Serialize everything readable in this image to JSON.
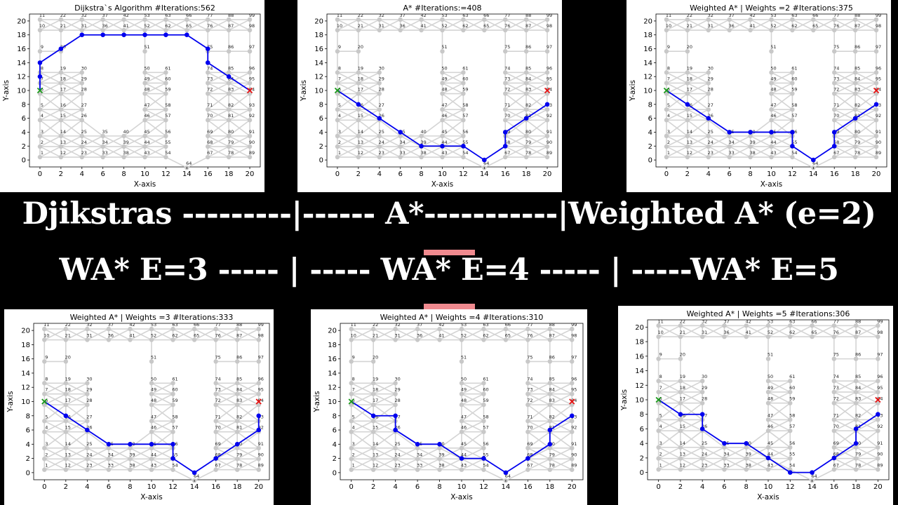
{
  "banner": {
    "line1": "Djikstras ---------|------ A*-----------|Weighted A* (e=2)",
    "line2": "WA* E=3 ----- | ----- WA* E=4 ----- | -----WA* E=5"
  },
  "colors": {
    "background": "#000000",
    "grid_node": "#c8c8c8",
    "grid_edge": "#d4d4d4",
    "path": "#0000ee",
    "start": "#1a9a1a",
    "goal": "#e81010",
    "accent_bar": "#f08a8f"
  },
  "graph": {
    "nodes": [
      {
        "id": "1",
        "x": 0,
        "y": 1
      },
      {
        "id": "2",
        "x": 0,
        "y": 2
      },
      {
        "id": "3",
        "x": 0,
        "y": 3
      },
      {
        "id": "4",
        "x": 0,
        "y": 4.5
      },
      {
        "id": "5",
        "x": 0,
        "y": 5.5
      },
      {
        "id": "6",
        "x": 0,
        "y": 7
      },
      {
        "id": "7",
        "x": 0,
        "y": 8
      },
      {
        "id": "8",
        "x": 0,
        "y": 9
      },
      {
        "id": "9",
        "x": 0,
        "y": 11
      },
      {
        "id": "10",
        "x": 0,
        "y": 13
      },
      {
        "id": "11",
        "x": 0,
        "y": 14
      },
      {
        "id": "12",
        "x": 2,
        "y": 1
      },
      {
        "id": "13",
        "x": 2,
        "y": 2
      },
      {
        "id": "14",
        "x": 2,
        "y": 3
      },
      {
        "id": "15",
        "x": 2,
        "y": 4.5
      },
      {
        "id": "16",
        "x": 2,
        "y": 5.5
      },
      {
        "id": "17",
        "x": 2,
        "y": 7
      },
      {
        "id": "18",
        "x": 2,
        "y": 8
      },
      {
        "id": "19",
        "x": 2,
        "y": 9
      },
      {
        "id": "20",
        "x": 2,
        "y": 11
      },
      {
        "id": "21",
        "x": 2,
        "y": 13
      },
      {
        "id": "22",
        "x": 2,
        "y": 14
      },
      {
        "id": "23",
        "x": 4,
        "y": 1
      },
      {
        "id": "24",
        "x": 4,
        "y": 2
      },
      {
        "id": "25",
        "x": 4,
        "y": 3
      },
      {
        "id": "26",
        "x": 4,
        "y": 4.5
      },
      {
        "id": "27",
        "x": 4,
        "y": 5.5
      },
      {
        "id": "28",
        "x": 4,
        "y": 7
      },
      {
        "id": "29",
        "x": 4,
        "y": 8
      },
      {
        "id": "30",
        "x": 4,
        "y": 9
      },
      {
        "id": "31",
        "x": 4,
        "y": 13
      },
      {
        "id": "32",
        "x": 4,
        "y": 14
      },
      {
        "id": "33",
        "x": 6,
        "y": 1
      },
      {
        "id": "34",
        "x": 6,
        "y": 2
      },
      {
        "id": "35",
        "x": 6,
        "y": 3
      },
      {
        "id": "36",
        "x": 6,
        "y": 13
      },
      {
        "id": "37",
        "x": 6,
        "y": 14
      },
      {
        "id": "38",
        "x": 8,
        "y": 1
      },
      {
        "id": "39",
        "x": 8,
        "y": 2
      },
      {
        "id": "40",
        "x": 8,
        "y": 3
      },
      {
        "id": "41",
        "x": 8,
        "y": 13
      },
      {
        "id": "42",
        "x": 8,
        "y": 14
      },
      {
        "id": "43",
        "x": 10,
        "y": 1
      },
      {
        "id": "44",
        "x": 10,
        "y": 2
      },
      {
        "id": "45",
        "x": 10,
        "y": 3
      },
      {
        "id": "46",
        "x": 10,
        "y": 4.5
      },
      {
        "id": "47",
        "x": 10,
        "y": 5.5
      },
      {
        "id": "48",
        "x": 10,
        "y": 7
      },
      {
        "id": "49",
        "x": 10,
        "y": 8
      },
      {
        "id": "50",
        "x": 10,
        "y": 9
      },
      {
        "id": "51",
        "x": 10,
        "y": 11
      },
      {
        "id": "52",
        "x": 10,
        "y": 13
      },
      {
        "id": "53",
        "x": 10,
        "y": 14
      },
      {
        "id": "54",
        "x": 12,
        "y": 1
      },
      {
        "id": "55",
        "x": 12,
        "y": 2
      },
      {
        "id": "56",
        "x": 12,
        "y": 3
      },
      {
        "id": "57",
        "x": 12,
        "y": 4.5
      },
      {
        "id": "58",
        "x": 12,
        "y": 5.5
      },
      {
        "id": "59",
        "x": 12,
        "y": 7
      },
      {
        "id": "60",
        "x": 12,
        "y": 8
      },
      {
        "id": "61",
        "x": 12,
        "y": 9
      },
      {
        "id": "62",
        "x": 12,
        "y": 13
      },
      {
        "id": "63",
        "x": 12,
        "y": 14
      },
      {
        "id": "64",
        "x": 14,
        "y": 0
      },
      {
        "id": "65",
        "x": 14,
        "y": 13
      },
      {
        "id": "66",
        "x": 14,
        "y": 14
      },
      {
        "id": "67",
        "x": 16,
        "y": 1
      },
      {
        "id": "68",
        "x": 16,
        "y": 2
      },
      {
        "id": "69",
        "x": 16,
        "y": 3
      },
      {
        "id": "70",
        "x": 16,
        "y": 4.5
      },
      {
        "id": "71",
        "x": 16,
        "y": 5.5
      },
      {
        "id": "72",
        "x": 16,
        "y": 7
      },
      {
        "id": "73",
        "x": 16,
        "y": 8
      },
      {
        "id": "74",
        "x": 16,
        "y": 9
      },
      {
        "id": "75",
        "x": 16,
        "y": 11
      },
      {
        "id": "76",
        "x": 16,
        "y": 13
      },
      {
        "id": "77",
        "x": 16,
        "y": 14
      },
      {
        "id": "78",
        "x": 18,
        "y": 1
      },
      {
        "id": "79",
        "x": 18,
        "y": 2
      },
      {
        "id": "80",
        "x": 18,
        "y": 3
      },
      {
        "id": "81",
        "x": 18,
        "y": 4.5
      },
      {
        "id": "82",
        "x": 18,
        "y": 5.5
      },
      {
        "id": "83",
        "x": 18,
        "y": 7
      },
      {
        "id": "84",
        "x": 18,
        "y": 8
      },
      {
        "id": "85",
        "x": 18,
        "y": 9
      },
      {
        "id": "86",
        "x": 18,
        "y": 11
      },
      {
        "id": "87",
        "x": 18,
        "y": 13
      },
      {
        "id": "88",
        "x": 18,
        "y": 14
      },
      {
        "id": "89",
        "x": 20,
        "y": 1
      },
      {
        "id": "90",
        "x": 20,
        "y": 2
      },
      {
        "id": "91",
        "x": 20,
        "y": 3
      },
      {
        "id": "92",
        "x": 20,
        "y": 4.5
      },
      {
        "id": "93",
        "x": 20,
        "y": 5.5
      },
      {
        "id": "94",
        "x": 20,
        "y": 7
      },
      {
        "id": "95",
        "x": 20,
        "y": 8
      },
      {
        "id": "96",
        "x": 20,
        "y": 9
      },
      {
        "id": "97",
        "x": 20,
        "y": 11
      },
      {
        "id": "98",
        "x": 20,
        "y": 13
      },
      {
        "id": "99",
        "x": 20,
        "y": 14
      }
    ]
  },
  "chart_data": [
    {
      "type": "scatter",
      "title": "Dijkstra`s Algorithm    #Iterations:562",
      "xlabel": "X-axis",
      "ylabel": "Y-axis",
      "xlim": [
        0,
        20
      ],
      "ylim": [
        0,
        20
      ],
      "xticks": [
        "0",
        "2",
        "4",
        "6",
        "8",
        "10",
        "12",
        "14",
        "16",
        "18",
        "20"
      ],
      "yticks": [
        "0",
        "2",
        "4",
        "6",
        "8",
        "10",
        "12",
        "14",
        "16",
        "18",
        "20"
      ],
      "start": [
        0,
        10
      ],
      "goal": [
        20,
        10
      ],
      "path": [
        [
          0,
          10
        ],
        [
          0,
          12
        ],
        [
          0,
          14
        ],
        [
          2,
          16
        ],
        [
          4,
          18
        ],
        [
          6,
          18
        ],
        [
          8,
          18
        ],
        [
          10,
          18
        ],
        [
          12,
          18
        ],
        [
          14,
          18
        ],
        [
          16,
          16
        ],
        [
          16,
          14
        ],
        [
          18,
          12
        ],
        [
          20,
          10
        ]
      ]
    },
    {
      "type": "scatter",
      "title": "A*  #Iterations:=408",
      "xlabel": "X-axis",
      "ylabel": "Y-axis",
      "xlim": [
        0,
        20
      ],
      "ylim": [
        0,
        20
      ],
      "xticks": [
        "0",
        "2",
        "4",
        "6",
        "8",
        "10",
        "12",
        "14",
        "16",
        "18",
        "20"
      ],
      "yticks": [
        "0",
        "2",
        "4",
        "6",
        "8",
        "10",
        "12",
        "14",
        "16",
        "18",
        "20"
      ],
      "start": [
        0,
        10
      ],
      "goal": [
        20,
        10
      ],
      "path": [
        [
          0,
          10
        ],
        [
          2,
          8
        ],
        [
          4,
          6
        ],
        [
          6,
          4
        ],
        [
          8,
          2
        ],
        [
          10,
          2
        ],
        [
          12,
          2
        ],
        [
          14,
          0
        ],
        [
          16,
          2
        ],
        [
          16,
          4
        ],
        [
          18,
          6
        ],
        [
          20,
          8
        ]
      ]
    },
    {
      "type": "scatter",
      "title": "Weighted A* | Weights =2  #Iterations:375",
      "xlabel": "X-axis",
      "ylabel": "Y-axis",
      "xlim": [
        0,
        20
      ],
      "ylim": [
        0,
        20
      ],
      "xticks": [
        "0",
        "2",
        "4",
        "6",
        "8",
        "10",
        "12",
        "14",
        "16",
        "18",
        "20"
      ],
      "yticks": [
        "0",
        "2",
        "4",
        "6",
        "8",
        "10",
        "12",
        "14",
        "16",
        "18",
        "20"
      ],
      "start": [
        0,
        10
      ],
      "goal": [
        20,
        10
      ],
      "path": [
        [
          0,
          10
        ],
        [
          2,
          8
        ],
        [
          4,
          6
        ],
        [
          6,
          4
        ],
        [
          8,
          4
        ],
        [
          10,
          4
        ],
        [
          12,
          4
        ],
        [
          12,
          2
        ],
        [
          14,
          0
        ],
        [
          16,
          2
        ],
        [
          16,
          4
        ],
        [
          18,
          6
        ],
        [
          20,
          8
        ]
      ]
    },
    {
      "type": "scatter",
      "title": "Weighted A* | Weights =3  #Iterations:333",
      "xlabel": "X-axis",
      "ylabel": "Y-axis",
      "xlim": [
        0,
        20
      ],
      "ylim": [
        0,
        20
      ],
      "xticks": [
        "0",
        "2",
        "4",
        "6",
        "8",
        "10",
        "12",
        "14",
        "16",
        "18",
        "20"
      ],
      "yticks": [
        "0",
        "2",
        "4",
        "6",
        "8",
        "10",
        "12",
        "14",
        "16",
        "18",
        "20"
      ],
      "start": [
        0,
        10
      ],
      "goal": [
        20,
        10
      ],
      "path": [
        [
          0,
          10
        ],
        [
          2,
          8
        ],
        [
          4,
          6
        ],
        [
          6,
          4
        ],
        [
          8,
          4
        ],
        [
          10,
          4
        ],
        [
          12,
          4
        ],
        [
          12,
          2
        ],
        [
          14,
          0
        ],
        [
          16,
          2
        ],
        [
          18,
          4
        ],
        [
          20,
          6
        ],
        [
          20,
          8
        ]
      ]
    },
    {
      "type": "scatter",
      "title": "Weighted A* | Weights =4  #Iterations:310",
      "xlabel": "X-axis",
      "ylabel": "Y-axis",
      "xlim": [
        0,
        20
      ],
      "ylim": [
        0,
        20
      ],
      "xticks": [
        "0",
        "2",
        "4",
        "6",
        "8",
        "10",
        "12",
        "14",
        "16",
        "18",
        "20"
      ],
      "yticks": [
        "0",
        "2",
        "4",
        "6",
        "8",
        "10",
        "12",
        "14",
        "16",
        "18",
        "20"
      ],
      "start": [
        0,
        10
      ],
      "goal": [
        20,
        10
      ],
      "path": [
        [
          0,
          10
        ],
        [
          2,
          8
        ],
        [
          4,
          8
        ],
        [
          4,
          6
        ],
        [
          6,
          4
        ],
        [
          8,
          4
        ],
        [
          10,
          2
        ],
        [
          12,
          2
        ],
        [
          14,
          0
        ],
        [
          16,
          2
        ],
        [
          18,
          4
        ],
        [
          18,
          6
        ],
        [
          20,
          8
        ]
      ]
    },
    {
      "type": "scatter",
      "title": "Weighted A* | Weights =5  #Iterations:306",
      "xlabel": "X-axis",
      "ylabel": "Y-axis",
      "xlim": [
        0,
        20
      ],
      "ylim": [
        0,
        20
      ],
      "xticks": [
        "0",
        "2",
        "4",
        "6",
        "8",
        "10",
        "12",
        "14",
        "16",
        "18",
        "20"
      ],
      "yticks": [
        "0",
        "2",
        "4",
        "6",
        "8",
        "10",
        "12",
        "14",
        "16",
        "18",
        "20"
      ],
      "start": [
        0,
        10
      ],
      "goal": [
        20,
        10
      ],
      "path": [
        [
          0,
          10
        ],
        [
          2,
          8
        ],
        [
          4,
          8
        ],
        [
          4,
          6
        ],
        [
          6,
          4
        ],
        [
          8,
          4
        ],
        [
          10,
          2
        ],
        [
          12,
          0
        ],
        [
          14,
          0
        ],
        [
          16,
          2
        ],
        [
          18,
          4
        ],
        [
          18,
          6
        ],
        [
          20,
          8
        ]
      ]
    }
  ]
}
